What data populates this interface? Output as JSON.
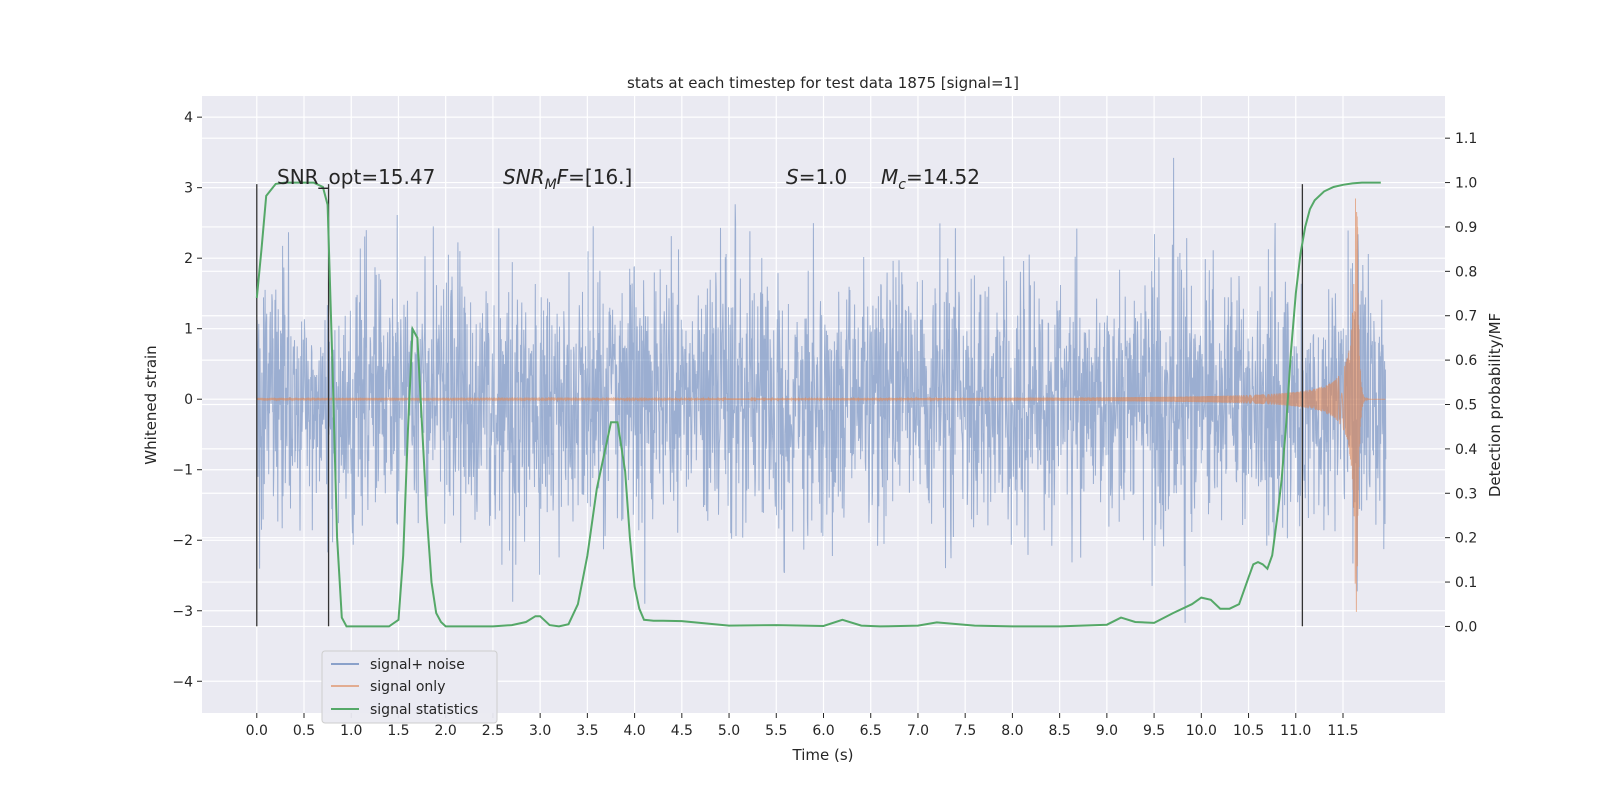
{
  "chart_data": {
    "type": "line",
    "title": "stats at each timestep for test data 1875 [signal=1]",
    "xlabel": "Time (s)",
    "ylabel": "Whitened strain",
    "y2label": "Detection probability/MF",
    "xlim": [
      -0.58,
      12.58
    ],
    "ylim": [
      -4.45,
      4.3
    ],
    "y2lim": [
      -0.195,
      1.195
    ],
    "x_ticks": [
      0.0,
      0.5,
      1.0,
      1.5,
      2.0,
      2.5,
      3.0,
      3.5,
      4.0,
      4.5,
      5.0,
      5.5,
      6.0,
      6.5,
      7.0,
      7.5,
      8.0,
      8.5,
      9.0,
      9.5,
      10.0,
      10.5,
      11.0,
      11.5
    ],
    "x_tick_labels": [
      "0.0",
      "0.5",
      "1.0",
      "1.5",
      "2.0",
      "2.5",
      "3.0",
      "3.5",
      "4.0",
      "4.5",
      "5.0",
      "5.5",
      "6.0",
      "6.5",
      "7.0",
      "7.5",
      "8.0",
      "8.5",
      "9.0",
      "9.5",
      "10.0",
      "10.5",
      "11.0",
      "11.5"
    ],
    "y_ticks": [
      -4,
      -3,
      -2,
      -1,
      0,
      1,
      2,
      3,
      4
    ],
    "y_tick_labels": [
      "−4",
      "−3",
      "−2",
      "−1",
      "0",
      "1",
      "2",
      "3",
      "4"
    ],
    "y2_ticks": [
      0.0,
      0.1,
      0.2,
      0.3,
      0.4,
      0.5,
      0.6,
      0.7,
      0.8,
      0.9,
      1.0,
      1.1
    ],
    "y2_tick_labels": [
      "0.0",
      "0.1",
      "0.2",
      "0.3",
      "0.4",
      "0.5",
      "0.6",
      "0.7",
      "0.8",
      "0.9",
      "1.0",
      "1.1"
    ],
    "grid": true,
    "legend_position": "lower-left",
    "annotations": {
      "snr_opt": "SNR_opt=15.47",
      "snr_mf_main": "SNR",
      "snr_mf_sub": "M",
      "snr_mf_rest": "F=[16.]",
      "s_label": "S",
      "s_value": "=1.0",
      "mc_main": "M",
      "mc_sub": "c",
      "mc_value": "=14.52"
    },
    "vertical_markers": [
      0.0,
      0.76,
      11.07
    ],
    "series": [
      {
        "name": "signal+ noise",
        "color": "#4c72b0",
        "kind": "noise-envelope",
        "x_range": [
          0.0,
          11.95
        ],
        "core_band": [
          -1.35,
          1.8
        ],
        "typical_peaks": [
          -2.5,
          2.7
        ]
      },
      {
        "name": "signal only",
        "color": "#dd8452",
        "kind": "chirp",
        "x_range": [
          0.0,
          11.95
        ],
        "merger_time": 11.65,
        "peak_amplitude": 3.3
      },
      {
        "name": "signal statistics",
        "color": "#55a868",
        "axis": "right",
        "x": [
          0.0,
          0.05,
          0.1,
          0.2,
          0.3,
          0.5,
          0.6,
          0.7,
          0.75,
          0.8,
          0.85,
          0.9,
          0.95,
          1.0,
          1.2,
          1.4,
          1.5,
          1.55,
          1.6,
          1.65,
          1.7,
          1.75,
          1.8,
          1.85,
          1.9,
          1.95,
          2.0,
          2.1,
          2.5,
          2.7,
          2.85,
          2.95,
          3.0,
          3.1,
          3.2,
          3.3,
          3.4,
          3.5,
          3.6,
          3.7,
          3.75,
          3.82,
          3.9,
          3.95,
          4.0,
          4.05,
          4.1,
          4.15,
          4.2,
          4.3,
          4.5,
          5.0,
          5.5,
          6.0,
          6.2,
          6.4,
          6.6,
          7.0,
          7.2,
          7.6,
          8.0,
          8.5,
          9.0,
          9.15,
          9.3,
          9.5,
          9.7,
          9.9,
          10.0,
          10.1,
          10.2,
          10.3,
          10.4,
          10.45,
          10.5,
          10.55,
          10.6,
          10.65,
          10.7,
          10.75,
          10.8,
          10.85,
          10.9,
          10.95,
          11.0,
          11.05,
          11.1,
          11.15,
          11.2,
          11.3,
          11.4,
          11.5,
          11.6,
          11.7,
          11.8,
          11.9
        ],
        "y": [
          0.74,
          0.85,
          0.97,
          0.997,
          1.0,
          1.0,
          1.0,
          0.99,
          0.95,
          0.6,
          0.2,
          0.02,
          0.0,
          0.0,
          0.0,
          0.0,
          0.015,
          0.16,
          0.44,
          0.67,
          0.65,
          0.45,
          0.25,
          0.1,
          0.03,
          0.01,
          0.0,
          0.0,
          0.0,
          0.003,
          0.01,
          0.023,
          0.023,
          0.003,
          0.0,
          0.005,
          0.05,
          0.16,
          0.31,
          0.41,
          0.46,
          0.46,
          0.35,
          0.2,
          0.09,
          0.04,
          0.015,
          0.014,
          0.013,
          0.013,
          0.012,
          0.002,
          0.003,
          0.001,
          0.015,
          0.002,
          0.0,
          0.002,
          0.009,
          0.002,
          0.0,
          0.0,
          0.004,
          0.02,
          0.01,
          0.008,
          0.03,
          0.05,
          0.065,
          0.06,
          0.04,
          0.04,
          0.05,
          0.08,
          0.11,
          0.14,
          0.145,
          0.14,
          0.13,
          0.16,
          0.24,
          0.33,
          0.46,
          0.62,
          0.75,
          0.84,
          0.9,
          0.94,
          0.96,
          0.98,
          0.99,
          0.995,
          0.998,
          1.0,
          1.0,
          1.0
        ]
      }
    ]
  }
}
